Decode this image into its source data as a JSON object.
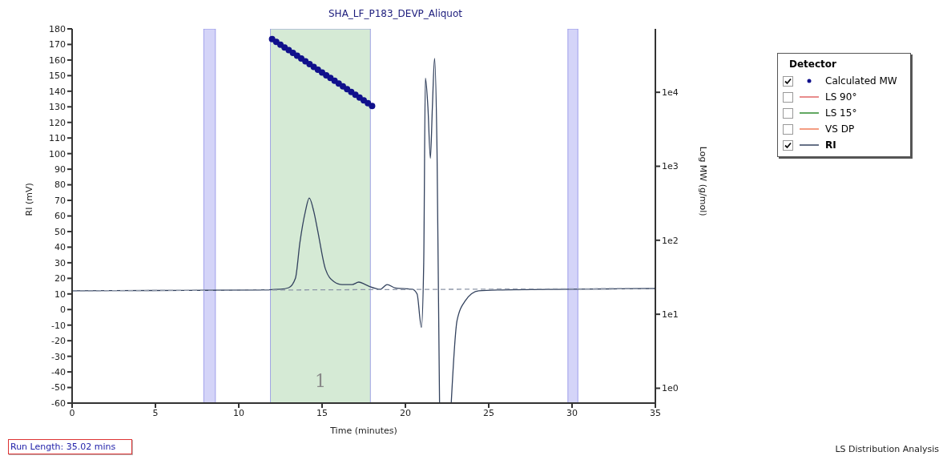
{
  "chart_data": {
    "type": "line",
    "title": "SHA_LF_P183_DEVP_Aliquot",
    "xlabel": "Time (minutes)",
    "ylabel": "RI (mV)",
    "y2label": "Log MW (g/mol)",
    "legend_title": "Detector",
    "legend": "right",
    "xlim": [
      0,
      35
    ],
    "xticks": [
      0,
      5,
      10,
      15,
      20,
      25,
      30,
      35
    ],
    "ylim": [
      -60,
      180
    ],
    "yticks": [
      -60,
      -50,
      -40,
      -30,
      -20,
      -10,
      0,
      10,
      20,
      30,
      40,
      50,
      60,
      70,
      80,
      90,
      100,
      110,
      120,
      130,
      140,
      150,
      160,
      170,
      180
    ],
    "y2lim": [
      0.63,
      72000
    ],
    "y2ticks": [
      {
        "value": 1,
        "label": "1e0"
      },
      {
        "value": 10,
        "label": "1e1"
      },
      {
        "value": 100,
        "label": "1e2"
      },
      {
        "value": 1000,
        "label": "1e3"
      },
      {
        "value": 10000,
        "label": "1e4"
      }
    ],
    "log": "y2",
    "bands": [
      {
        "axis": "x",
        "from": 7.9,
        "to": 8.6,
        "color": "#d4d4f8"
      },
      {
        "axis": "x",
        "from": 11.9,
        "to": 17.9,
        "label": "1",
        "color": "#d5ead5"
      },
      {
        "axis": "x",
        "from": 29.75,
        "to": 30.35,
        "color": "#d4d4f8"
      }
    ],
    "series": [
      {
        "name": "Calculated MW",
        "type": "scatter",
        "axis": "y2",
        "marker": "circle",
        "color": "#10108c",
        "x": [
          12,
          12.25,
          12.5,
          12.75,
          13,
          13.25,
          13.5,
          13.75,
          14,
          14.25,
          14.5,
          14.75,
          15,
          15.25,
          15.5,
          15.75,
          16,
          16.25,
          16.5,
          16.75,
          17,
          17.25,
          17.5,
          17.75,
          18
        ],
        "values": [
          52500,
          48100,
          44100,
          40400,
          37100,
          34000,
          31200,
          28600,
          26200,
          24000,
          22000,
          20200,
          18500,
          17000,
          15600,
          14300,
          13100,
          12000,
          11000,
          10100,
          9260,
          8490,
          7780,
          7130,
          6540
        ]
      },
      {
        "name": "LS 90°",
        "type": "line",
        "color": "#e06666"
      },
      {
        "name": "LS 15°",
        "type": "line",
        "color": "#2e8b2e"
      },
      {
        "name": "VS DP",
        "type": "line",
        "color": "#f07c5a"
      },
      {
        "name": "RI",
        "color": "#33425e",
        "line_style": "solid",
        "x": [
          0,
          5,
          11,
          12.5,
          13,
          13.4,
          13.67,
          14,
          14.23,
          14.5,
          14.73,
          15.2,
          15.7,
          16.2,
          16.8,
          17.2,
          17.6,
          17.9,
          18.5,
          18.9,
          19.4,
          20.4,
          20.7,
          20.96,
          21.1,
          21.2,
          21.35,
          21.5,
          21.62,
          21.75,
          21.9,
          22.05,
          22.4,
          22.75,
          23.1,
          23.6,
          24.4,
          25.5,
          30,
          35
        ],
        "values": [
          12,
          12.2,
          12.5,
          13,
          14,
          20,
          43,
          63,
          71.5,
          63,
          51,
          26,
          18,
          16,
          16,
          17.6,
          16,
          14.6,
          13,
          16,
          13.8,
          13,
          10,
          -11.4,
          30,
          148.5,
          130,
          97,
          130,
          161,
          100,
          -60,
          null,
          -60,
          -7,
          5.7,
          12,
          12.5,
          13,
          13.5
        ]
      },
      {
        "line_style": "dashed",
        "color": "#8d96a8",
        "x": [
          0,
          35
        ],
        "values": [
          12,
          13.5
        ]
      }
    ],
    "annotations": [
      "Run Length: 35.02 mins",
      "LS Distribution Analysis"
    ]
  }
}
